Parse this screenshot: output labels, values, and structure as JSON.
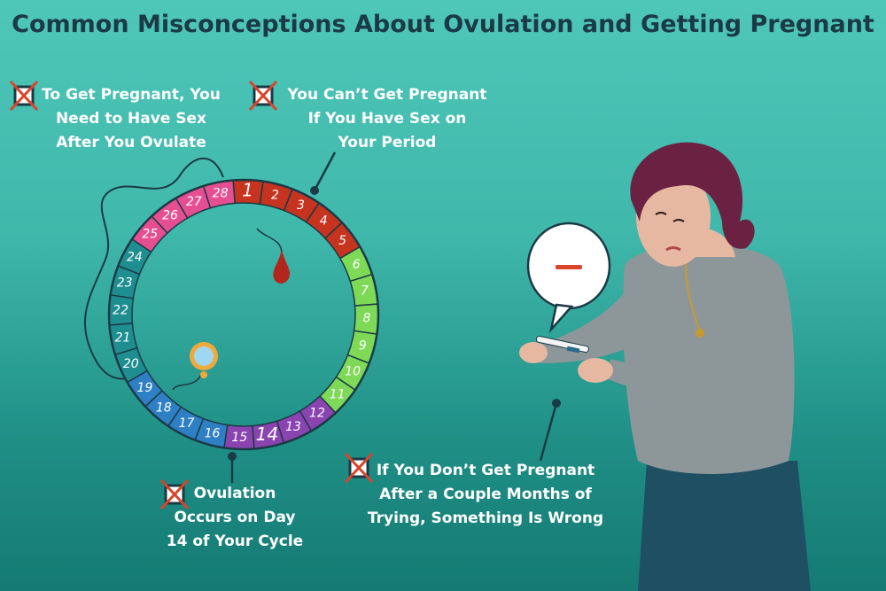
{
  "title": "Common Misconceptions About Ovulation and Getting Pregnant",
  "misconceptions": [
    {
      "lines": [
        "To Get Pregnant, You",
        "Need to Have Sex",
        "After You Ovulate"
      ]
    },
    {
      "lines": [
        "You Can’t Get Pregnant",
        "If You Have Sex on",
        "Your Period"
      ]
    },
    {
      "lines": [
        "Ovulation",
        "Occurs on Day",
        "14 of Your Cycle"
      ]
    },
    {
      "lines": [
        "If You Don’t Get Pregnant",
        "After a Couple Months of",
        "Trying, Something Is Wrong"
      ]
    }
  ],
  "cycle": {
    "days": [
      "1",
      "2",
      "3",
      "4",
      "5",
      "6",
      "7",
      "8",
      "9",
      "10",
      "11",
      "12",
      "13",
      "14",
      "15",
      "16",
      "17",
      "18",
      "19",
      "20",
      "21",
      "22",
      "23",
      "24",
      "25",
      "26",
      "27",
      "28"
    ],
    "phase_colors": {
      "menstrual": "#c6331f",
      "follicular": "#7ed957",
      "ovulation": "#8a44b0",
      "luteal_blue": "#2f7fc4",
      "luteal_teal": "#1e8e90",
      "luteal_pink": "#e54f92"
    }
  },
  "test_result_symbol": "—",
  "icons": {
    "cross_mark": "x-box-icon",
    "blood_drop": "blood-drop-icon",
    "egg": "egg-icon",
    "speech_bubble": "speech-bubble-icon"
  }
}
